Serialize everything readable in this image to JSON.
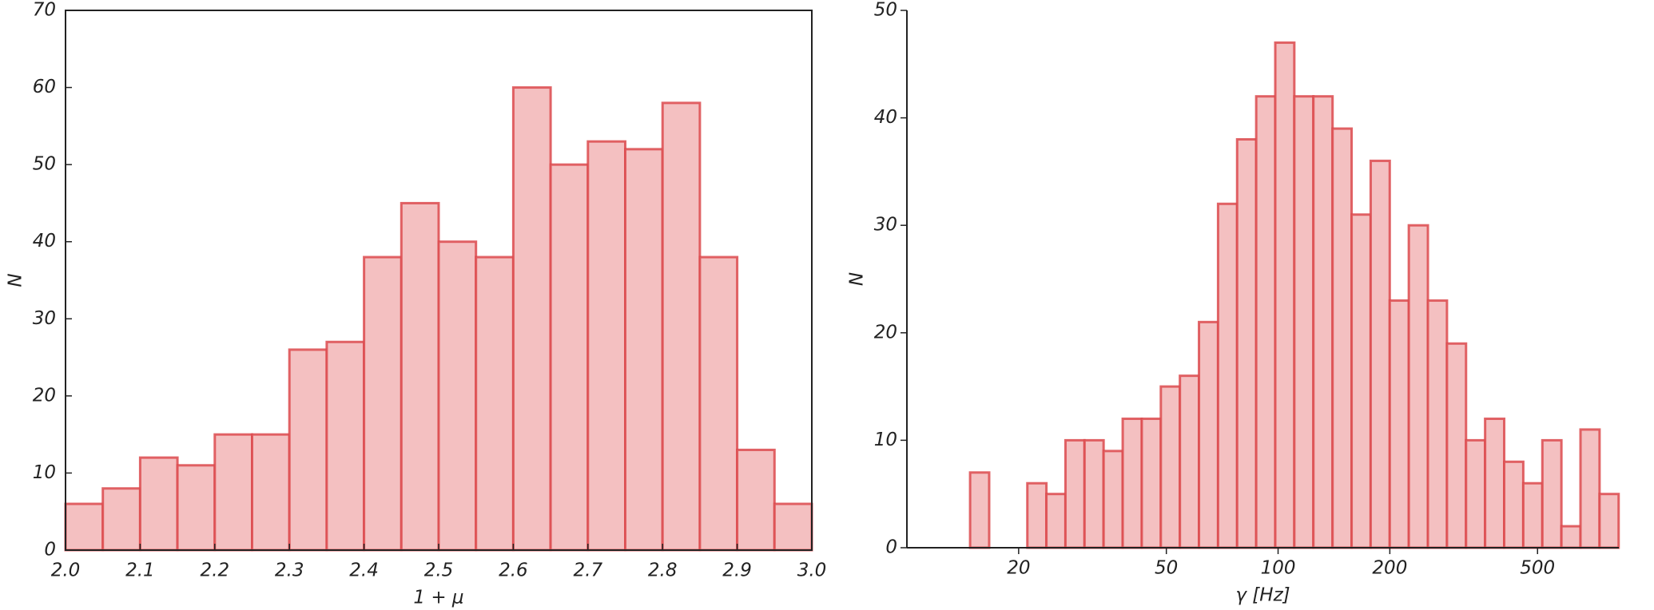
{
  "chart_data": [
    {
      "type": "histogram",
      "xlabel": "1 + μ",
      "ylabel": "N",
      "bins": [
        2.0,
        2.05,
        2.1,
        2.15,
        2.2,
        2.25,
        2.3,
        2.35,
        2.4,
        2.45,
        2.5,
        2.55,
        2.6,
        2.65,
        2.7,
        2.75,
        2.8,
        2.85,
        2.9,
        2.95,
        3.0
      ],
      "counts": [
        6,
        8,
        12,
        11,
        15,
        15,
        26,
        27,
        38,
        45,
        40,
        38,
        60,
        50,
        53,
        52,
        58,
        38,
        13,
        6
      ],
      "color": "#f4c0c1",
      "edgecolor": "#dc4a4e",
      "xlim": [
        2.0,
        3.0
      ],
      "ylim": [
        0,
        70
      ],
      "xticks": [
        {
          "value": 2.0,
          "label": "2.0"
        },
        2.1,
        2.2,
        2.3,
        2.4,
        2.5,
        2.6,
        2.7,
        2.8,
        2.9,
        {
          "value": 3.0,
          "label": "3.0"
        }
      ],
      "yticks": [
        0,
        10,
        20,
        30,
        40,
        50,
        60,
        70
      ]
    },
    {
      "type": "histogram",
      "xlabel": "γ [Hz]",
      "ylabel": "N",
      "xscale": "log",
      "bins": [
        14.8,
        16.66,
        18.75,
        21.11,
        23.76,
        26.74,
        30.1,
        33.88,
        38.14,
        42.93,
        48.32,
        54.39,
        61.22,
        68.91,
        77.56,
        87.31,
        98.27,
        110.6,
        124.5,
        140.2,
        157.8,
        177.6,
        199.9,
        225.0,
        253.3,
        285.1,
        320.9,
        361.2,
        406.6,
        457.7,
        515.2,
        579.9,
        652.7,
        734.7,
        827.0
      ],
      "counts": [
        7,
        0,
        0,
        6,
        5,
        10,
        10,
        9,
        12,
        12,
        15,
        16,
        21,
        32,
        38,
        42,
        47,
        42,
        42,
        39,
        31,
        36,
        23,
        30,
        23,
        19,
        10,
        12,
        8,
        6,
        10,
        2,
        11,
        5
      ],
      "color": "#f4c0c1",
      "edgecolor": "#dc4a4e",
      "xlim": [
        10,
        828
      ],
      "ylim": [
        0,
        50
      ],
      "xticks": [
        20,
        50,
        100,
        200,
        500
      ],
      "yticks": [
        0,
        10,
        20,
        30,
        40,
        50
      ]
    }
  ]
}
